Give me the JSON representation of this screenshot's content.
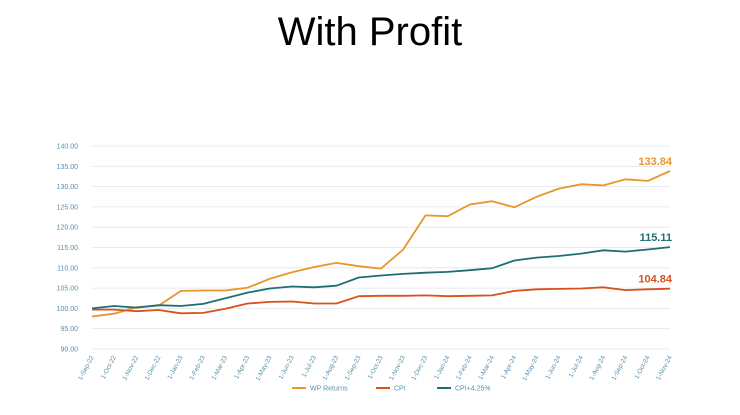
{
  "slide": {
    "title": "With Profit"
  },
  "chart_data": {
    "type": "line",
    "title": "",
    "xlabel": "",
    "ylabel": "",
    "ylim": [
      90,
      140
    ],
    "yticks": [
      90,
      95,
      100,
      105,
      110,
      115,
      120,
      125,
      130,
      135,
      140
    ],
    "ytick_labels": [
      "90.00",
      "95.00",
      "100.00",
      "105.00",
      "110.00",
      "115.00",
      "120.00",
      "125.00",
      "130.00",
      "135.00",
      "140.00"
    ],
    "grid": "horizontal",
    "legend_position": "bottom",
    "categories": [
      "1-Sep-22",
      "1-Oct-22",
      "1-Nov-22",
      "1-Dec-22",
      "1-Jan-23",
      "1-Feb-23",
      "1-Mar-23",
      "1-Apr-23",
      "1-May-23",
      "1-Jun-23",
      "1-Jul-23",
      "1-Aug-23",
      "1-Sep-23",
      "1-Oct-23",
      "1-Nov-23",
      "1-Dec-23",
      "1-Jan-24",
      "1-Feb-24",
      "1-Mar-24",
      "1-Apr-24",
      "1-May-24",
      "1-Jun-24",
      "1-Jul-24",
      "1-Aug-24",
      "1-Sep-24",
      "1-Oct-24",
      "1-Nov-24"
    ],
    "series": [
      {
        "name": "WP Returns",
        "color": "#e8962a",
        "end_label": "133.84",
        "values": [
          98.0,
          98.7,
          100.3,
          100.7,
          104.3,
          104.4,
          104.4,
          105.1,
          107.3,
          108.9,
          110.2,
          111.2,
          110.4,
          109.8,
          114.5,
          122.9,
          122.7,
          125.6,
          126.4,
          124.9,
          127.5,
          129.5,
          130.6,
          130.3,
          131.8,
          131.4,
          133.84
        ]
      },
      {
        "name": "CPI",
        "color": "#d9501c",
        "end_label": "104.84",
        "values": [
          99.7,
          99.7,
          99.3,
          99.6,
          98.8,
          98.9,
          99.9,
          101.2,
          101.6,
          101.7,
          101.2,
          101.2,
          103.0,
          103.1,
          103.1,
          103.2,
          103.0,
          103.1,
          103.2,
          104.3,
          104.7,
          104.8,
          104.9,
          105.2,
          104.5,
          104.7,
          104.84
        ]
      },
      {
        "name": "CPI+4.25%",
        "color": "#1e6f72",
        "end_label": "115.11",
        "values": [
          100.0,
          100.6,
          100.2,
          100.8,
          100.6,
          101.1,
          102.5,
          103.9,
          104.9,
          105.4,
          105.2,
          105.6,
          107.6,
          108.1,
          108.5,
          108.8,
          109.0,
          109.4,
          109.9,
          111.8,
          112.5,
          112.9,
          113.5,
          114.3,
          114.0,
          114.5,
          115.11
        ]
      }
    ]
  }
}
